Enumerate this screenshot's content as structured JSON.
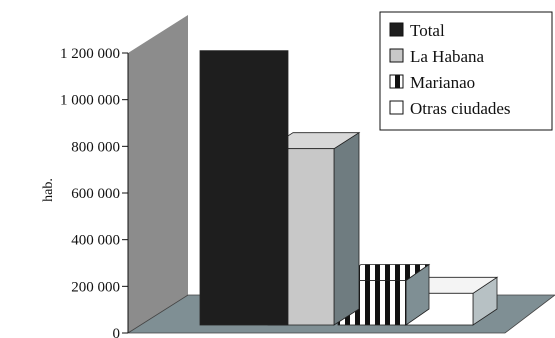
{
  "chart_data": {
    "type": "bar",
    "categories": [
      "Total",
      "La Habana",
      "Marianao",
      "Otras ciudades"
    ],
    "values": [
      1210000,
      790000,
      225000,
      170000
    ],
    "colors": [
      "#1e1e1e",
      "#c8c8c8",
      "#ffffff",
      "#ffffff"
    ],
    "patterns": [
      "solid",
      "solid",
      "vertical-stripes",
      "solid"
    ],
    "ylabel": "hab.",
    "ylim": [
      0,
      1200000
    ],
    "yticks": [
      0,
      200000,
      400000,
      600000,
      800000,
      1000000,
      1200000
    ],
    "ytick_labels": [
      "0",
      "200 000",
      "400 000",
      "600 000",
      "800 000",
      "1 000 000",
      "1 200 000"
    ],
    "legend": [
      "Total",
      "La Habana",
      "Marianao",
      "Otras ciudades"
    ],
    "legend_position": "top-right",
    "grid": false,
    "style": "3d",
    "wall_color": "#8c8c8c",
    "floor_color": "#7f8f94"
  }
}
